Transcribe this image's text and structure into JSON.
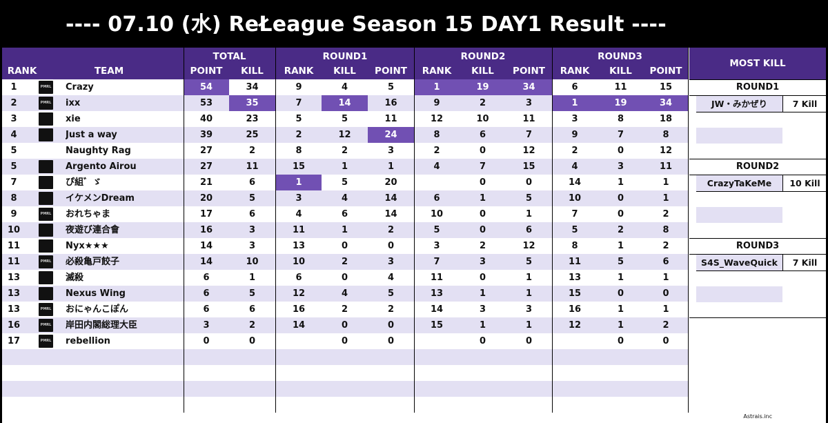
{
  "title": "---- 07.10 (水) ReŁeague Season 15 DAY1 Result ----",
  "footer": "Astrais.inc",
  "headers": {
    "rank": "RANK",
    "team": "TEAM",
    "total": "TOTAL",
    "round1": "ROUND1",
    "round2": "ROUND2",
    "round3": "ROUND3",
    "point": "POINT",
    "kill": "KILL",
    "most_kill": "MOST KILL"
  },
  "rows": [
    {
      "rank": "1",
      "team": "Crazy",
      "logo": "pmrl-logo",
      "total_point": "54",
      "total_kill": "34",
      "r1_rank": "9",
      "r1_kill": "4",
      "r1_point": "5",
      "r2_rank": "1",
      "r2_kill": "19",
      "r2_point": "34",
      "r3_rank": "6",
      "r3_kill": "11",
      "r3_point": "15"
    },
    {
      "rank": "2",
      "team": "ixx",
      "logo": "pmrl-logo",
      "total_point": "53",
      "total_kill": "35",
      "r1_rank": "7",
      "r1_kill": "14",
      "r1_point": "16",
      "r2_rank": "9",
      "r2_kill": "2",
      "r2_point": "3",
      "r3_rank": "1",
      "r3_kill": "19",
      "r3_point": "34"
    },
    {
      "rank": "3",
      "team": "xie",
      "logo": "xie-logo",
      "total_point": "40",
      "total_kill": "23",
      "r1_rank": "5",
      "r1_kill": "5",
      "r1_point": "11",
      "r2_rank": "12",
      "r2_kill": "10",
      "r2_point": "11",
      "r3_rank": "3",
      "r3_kill": "8",
      "r3_point": "18"
    },
    {
      "rank": "4",
      "team": "Just a way",
      "logo": "w-logo",
      "total_point": "39",
      "total_kill": "25",
      "r1_rank": "2",
      "r1_kill": "12",
      "r1_point": "24",
      "r2_rank": "8",
      "r2_kill": "6",
      "r2_point": "7",
      "r3_rank": "9",
      "r3_kill": "7",
      "r3_point": "8"
    },
    {
      "rank": "5",
      "team": "Naughty Rag",
      "logo": "",
      "total_point": "27",
      "total_kill": "2",
      "r1_rank": "8",
      "r1_kill": "2",
      "r1_point": "3",
      "r2_rank": "2",
      "r2_kill": "0",
      "r2_point": "12",
      "r3_rank": "2",
      "r3_kill": "0",
      "r3_point": "12"
    },
    {
      "rank": "5",
      "team": "Argento Airou",
      "logo": "argento-logo",
      "total_point": "27",
      "total_kill": "11",
      "r1_rank": "15",
      "r1_kill": "1",
      "r1_point": "1",
      "r2_rank": "4",
      "r2_kill": "7",
      "r2_point": "15",
      "r3_rank": "4",
      "r3_kill": "3",
      "r3_point": "11"
    },
    {
      "rank": "7",
      "team": "ぴ組゛ゞ",
      "logo": "pigumi-logo",
      "total_point": "21",
      "total_kill": "6",
      "r1_rank": "1",
      "r1_kill": "5",
      "r1_point": "20",
      "r2_rank": "",
      "r2_kill": "0",
      "r2_point": "0",
      "r3_rank": "14",
      "r3_kill": "1",
      "r3_point": "1"
    },
    {
      "rank": "8",
      "team": "イケメンDream",
      "logo": "ikemen-logo",
      "total_point": "20",
      "total_kill": "5",
      "r1_rank": "3",
      "r1_kill": "4",
      "r1_point": "14",
      "r2_rank": "6",
      "r2_kill": "1",
      "r2_point": "5",
      "r3_rank": "10",
      "r3_kill": "0",
      "r3_point": "1"
    },
    {
      "rank": "9",
      "team": "おれちゃま",
      "logo": "pmrl-logo",
      "total_point": "17",
      "total_kill": "6",
      "r1_rank": "4",
      "r1_kill": "6",
      "r1_point": "14",
      "r2_rank": "10",
      "r2_kill": "0",
      "r2_point": "1",
      "r3_rank": "7",
      "r3_kill": "0",
      "r3_point": "2"
    },
    {
      "rank": "10",
      "team": "夜遊び連合會",
      "logo": "yoasobi-logo",
      "total_point": "16",
      "total_kill": "3",
      "r1_rank": "11",
      "r1_kill": "1",
      "r1_point": "2",
      "r2_rank": "5",
      "r2_kill": "0",
      "r2_point": "6",
      "r3_rank": "5",
      "r3_kill": "2",
      "r3_point": "8"
    },
    {
      "rank": "11",
      "team": "Nyx★★★",
      "logo": "nyx-logo",
      "total_point": "14",
      "total_kill": "3",
      "r1_rank": "13",
      "r1_kill": "0",
      "r1_point": "0",
      "r2_rank": "3",
      "r2_kill": "2",
      "r2_point": "12",
      "r3_rank": "8",
      "r3_kill": "1",
      "r3_point": "2"
    },
    {
      "rank": "11",
      "team": "必殺亀戸餃子",
      "logo": "pmrl-logo",
      "total_point": "14",
      "total_kill": "10",
      "r1_rank": "10",
      "r1_kill": "2",
      "r1_point": "3",
      "r2_rank": "7",
      "r2_kill": "3",
      "r2_point": "5",
      "r3_rank": "11",
      "r3_kill": "5",
      "r3_point": "6"
    },
    {
      "rank": "13",
      "team": "滅殺",
      "logo": "messatsu-logo",
      "total_point": "6",
      "total_kill": "1",
      "r1_rank": "6",
      "r1_kill": "0",
      "r1_point": "4",
      "r2_rank": "11",
      "r2_kill": "0",
      "r2_point": "1",
      "r3_rank": "13",
      "r3_kill": "1",
      "r3_point": "1"
    },
    {
      "rank": "13",
      "team": "Nexus Wing",
      "logo": "nexus-logo",
      "total_point": "6",
      "total_kill": "5",
      "r1_rank": "12",
      "r1_kill": "4",
      "r1_point": "5",
      "r2_rank": "13",
      "r2_kill": "1",
      "r2_point": "1",
      "r3_rank": "15",
      "r3_kill": "0",
      "r3_point": "0"
    },
    {
      "rank": "13",
      "team": "おにゃんこぽん",
      "logo": "pmrl-logo",
      "total_point": "6",
      "total_kill": "6",
      "r1_rank": "16",
      "r1_kill": "2",
      "r1_point": "2",
      "r2_rank": "14",
      "r2_kill": "3",
      "r2_point": "3",
      "r3_rank": "16",
      "r3_kill": "1",
      "r3_point": "1"
    },
    {
      "rank": "16",
      "team": "岸田内閣総理大臣",
      "logo": "pmrl-logo",
      "total_point": "3",
      "total_kill": "2",
      "r1_rank": "14",
      "r1_kill": "0",
      "r1_point": "0",
      "r2_rank": "15",
      "r2_kill": "1",
      "r2_point": "1",
      "r3_rank": "12",
      "r3_kill": "1",
      "r3_point": "2"
    },
    {
      "rank": "17",
      "team": "rebellion",
      "logo": "pmrl-logo",
      "total_point": "0",
      "total_kill": "0",
      "r1_rank": "",
      "r1_kill": "0",
      "r1_point": "0",
      "r2_rank": "",
      "r2_kill": "0",
      "r2_point": "0",
      "r3_rank": "",
      "r3_kill": "0",
      "r3_point": "0"
    }
  ],
  "highlights": [
    {
      "row": 0,
      "col": "total_point"
    },
    {
      "row": 1,
      "col": "total_kill"
    },
    {
      "row": 1,
      "col": "r1_kill"
    },
    {
      "row": 3,
      "col": "r1_point"
    },
    {
      "row": 6,
      "col": "r1_rank"
    },
    {
      "row": 0,
      "col": "r2_rank"
    },
    {
      "row": 0,
      "col": "r2_kill"
    },
    {
      "row": 0,
      "col": "r2_point"
    },
    {
      "row": 1,
      "col": "r3_rank"
    },
    {
      "row": 1,
      "col": "r3_kill"
    },
    {
      "row": 1,
      "col": "r3_point"
    }
  ],
  "most_kill": [
    {
      "round": "ROUND1",
      "player": "JW・みかぜり",
      "kills": "7 Kill"
    },
    {
      "round": "ROUND2",
      "player": "CrazyTaKeMe",
      "kills": "10 Kill"
    },
    {
      "round": "ROUND3",
      "player": "S4S_WaveQuick",
      "kills": "7 Kill"
    }
  ],
  "colors": {
    "header": "#4a2b86",
    "highlight": "#7150b3",
    "stripe": "#e3e0f3"
  }
}
